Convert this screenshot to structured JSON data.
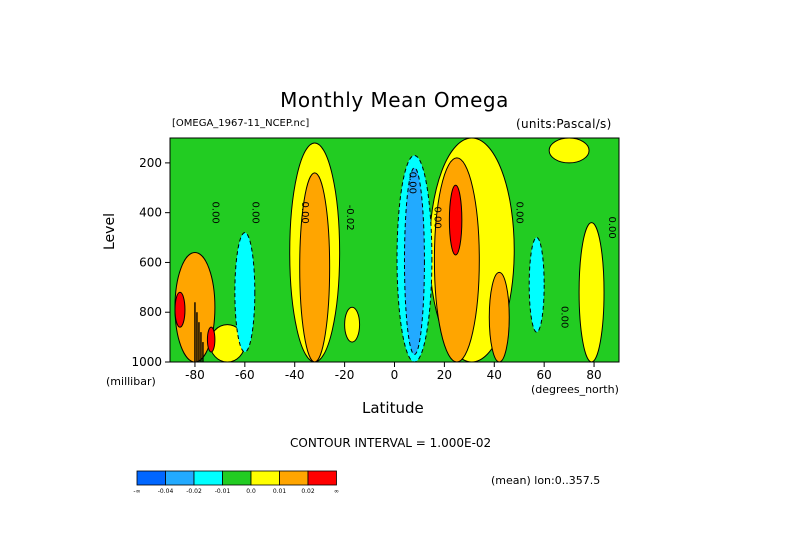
{
  "chart_data": {
    "type": "heatmap",
    "title": "Monthly Mean Omega",
    "subtitle_left": "[OMEGA_1967-11_NCEP.nc]",
    "subtitle_right": "(units:Pascal/s)",
    "xlabel": "Latitude",
    "x_unit": "(degrees_north)",
    "ylabel": "Level",
    "y_unit": "(millibar)",
    "xlim": [
      -90,
      90
    ],
    "ylim": [
      1000,
      100
    ],
    "y_inverted": true,
    "x_ticks": [
      -80,
      -60,
      -40,
      -20,
      0,
      20,
      40,
      60,
      80
    ],
    "y_ticks": [
      200,
      400,
      600,
      800,
      1000
    ],
    "contour_interval_text": "CONTOUR INTERVAL = 1.000E-02",
    "mean_text": "(mean) lon:0..357.5",
    "contour_labels": [
      "0.00",
      "0.00",
      "0.00",
      "-0.02",
      "0.00",
      "0.00",
      "0.00",
      "0.00",
      "0.00"
    ],
    "colorbar": {
      "colors": [
        "#0066ff",
        "#22aaff",
        "#00ffff",
        "#22cc22",
        "#ffff00",
        "#ffa500",
        "#ff0000"
      ],
      "labels": [
        "-∞",
        "-0.04",
        "-0.02",
        "-0.01",
        "0.0",
        "0.01",
        "0.02",
        "∞"
      ]
    },
    "regions": [
      {
        "level": 0.005,
        "lat": [
          -74,
          -60
        ],
        "p": [
          850,
          1000
        ]
      },
      {
        "level": 0.005,
        "lat": [
          -42,
          -22
        ],
        "p": [
          120,
          1000
        ]
      },
      {
        "level": 0.005,
        "lat": [
          -20,
          -14
        ],
        "p": [
          780,
          920
        ]
      },
      {
        "level": 0.005,
        "lat": [
          14,
          48
        ],
        "p": [
          100,
          1000
        ]
      },
      {
        "level": 0.005,
        "lat": [
          62,
          78
        ],
        "p": [
          100,
          200
        ]
      },
      {
        "level": 0.005,
        "lat": [
          74,
          84
        ],
        "p": [
          440,
          1000
        ]
      },
      {
        "level": -0.015,
        "lat": [
          -64,
          -56
        ],
        "p": [
          480,
          960
        ]
      },
      {
        "level": -0.015,
        "lat": [
          1,
          15
        ],
        "p": [
          170,
          1000
        ]
      },
      {
        "level": -0.015,
        "lat": [
          54,
          60
        ],
        "p": [
          500,
          880
        ]
      },
      {
        "level": -0.03,
        "lat": [
          4,
          12
        ],
        "p": [
          220,
          970
        ]
      },
      {
        "level": 0.015,
        "lat": [
          -88,
          -72
        ],
        "p": [
          560,
          1000
        ]
      },
      {
        "level": 0.015,
        "lat": [
          -38,
          -26
        ],
        "p": [
          240,
          1000
        ]
      },
      {
        "level": 0.015,
        "lat": [
          16,
          34
        ],
        "p": [
          180,
          1000
        ]
      },
      {
        "level": 0.015,
        "lat": [
          38,
          46
        ],
        "p": [
          640,
          1000
        ]
      },
      {
        "level": 0.03,
        "lat": [
          -88,
          -84
        ],
        "p": [
          720,
          860
        ]
      },
      {
        "level": 0.03,
        "lat": [
          -75,
          -72
        ],
        "p": [
          860,
          960
        ]
      },
      {
        "level": 0.03,
        "lat": [
          22,
          27
        ],
        "p": [
          290,
          570
        ]
      }
    ]
  }
}
